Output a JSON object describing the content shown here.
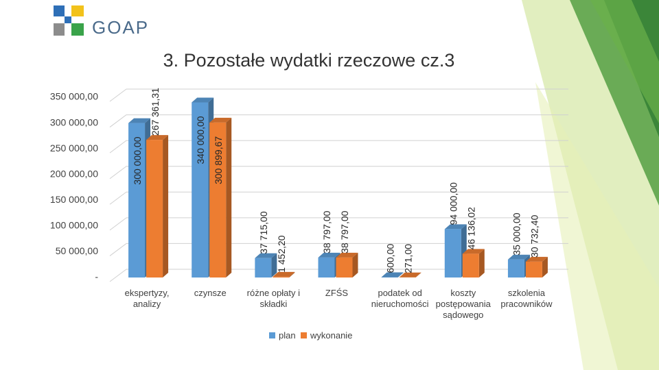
{
  "logo_text": "GOAP",
  "chart_data": {
    "type": "bar",
    "title": "3. Pozostałe wydatki rzeczowe cz.3",
    "categories": [
      "ekspertyzy, analizy",
      "czynsze",
      "różne opłaty i składki",
      "ZFŚS",
      "podatek od nieruchomości",
      "koszty postępowania sądowego",
      "szkolenia pracowników"
    ],
    "series": [
      {
        "name": "plan",
        "color": "#5b9bd5",
        "values": [
          300000,
          340000,
          37715,
          38797,
          600,
          94000,
          35000
        ],
        "value_labels": [
          "300 000,00",
          "340 000,00",
          "37 715,00",
          "38 797,00",
          "600,00",
          "94 000,00",
          "35 000,00"
        ]
      },
      {
        "name": "wykonanie",
        "color": "#ed7d31",
        "values": [
          267361.31,
          300899.67,
          1452.2,
          38797,
          271,
          46136.02,
          30732.4
        ],
        "value_labels": [
          "267 361,31",
          "300 899,67",
          "1 452,20",
          "38 797,00",
          "271,00",
          "46 136,02",
          "30 732,40"
        ]
      }
    ],
    "ylim": [
      0,
      350000
    ],
    "yticks": [
      {
        "value": 0,
        "label": "-"
      },
      {
        "value": 50000,
        "label": "50 000,00"
      },
      {
        "value": 100000,
        "label": "100 000,00"
      },
      {
        "value": 150000,
        "label": "150 000,00"
      },
      {
        "value": 200000,
        "label": "200 000,00"
      },
      {
        "value": 250000,
        "label": "250 000,00"
      },
      {
        "value": 300000,
        "label": "300 000,00"
      },
      {
        "value": 350000,
        "label": "350 000,00"
      }
    ],
    "grid": true,
    "legend": "bottom"
  }
}
